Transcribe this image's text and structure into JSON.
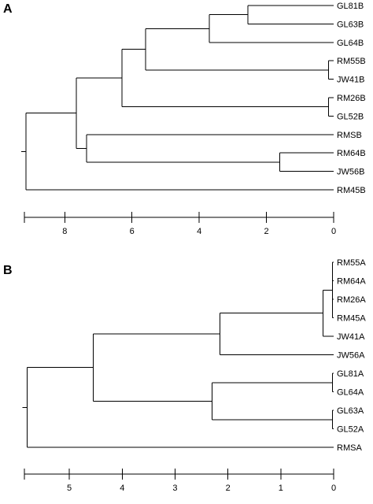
{
  "panels": [
    {
      "label": "A",
      "leaves": [
        "GL81B",
        "GL63B",
        "GL64B",
        "RM55B",
        "JW41B",
        "RM26B",
        "GL52B",
        "RMSB",
        "RM64B",
        "JW56B",
        "RM45B"
      ],
      "axis": {
        "ticks": [
          8,
          6,
          4,
          2,
          0
        ],
        "range": [
          9.2,
          0
        ]
      },
      "tree": {
        "h": 9.15,
        "c": [
          {
            "h": 7.65,
            "c": [
              {
                "h": 6.3,
                "c": [
                  {
                    "h": 5.6,
                    "c": [
                      {
                        "h": 3.7,
                        "c": [
                          {
                            "h": 2.55,
                            "c": [
                              "GL81B",
                              "GL63B"
                            ]
                          },
                          "GL64B"
                        ]
                      },
                      {
                        "h": 0.15,
                        "c": [
                          "RM55B",
                          "JW41B"
                        ]
                      }
                    ]
                  },
                  {
                    "h": 0.15,
                    "c": [
                      "RM26B",
                      "GL52B"
                    ]
                  }
                ]
              },
              {
                "h": 7.35,
                "c": [
                  "RMSB",
                  {
                    "h": 1.6,
                    "c": [
                      "RM64B",
                      "JW56B"
                    ]
                  }
                ]
              }
            ]
          },
          "RM45B"
        ]
      }
    },
    {
      "label": "B",
      "leaves": [
        "RM55A",
        "RM64A",
        "RM26A",
        "RM45A",
        "JW41A",
        "JW56A",
        "GL81A",
        "GL64A",
        "GL63A",
        "GL52A",
        "RMSA"
      ],
      "axis": {
        "ticks": [
          5,
          4,
          3,
          2,
          1,
          0
        ],
        "range": [
          5.85,
          0
        ]
      },
      "tree": {
        "h": 5.8,
        "c": [
          {
            "h": 4.55,
            "c": [
              {
                "h": 2.15,
                "c": [
                  {
                    "h": 0.2,
                    "c": [
                      {
                        "h": 0.02,
                        "c": [
                          "RM55A",
                          "RM64A",
                          "RM26A",
                          "RM45A"
                        ]
                      },
                      "JW41A"
                    ]
                  },
                  "JW56A"
                ]
              },
              {
                "h": 2.3,
                "c": [
                  {
                    "h": 0.02,
                    "c": [
                      "GL81A",
                      "GL64A"
                    ]
                  },
                  {
                    "h": 0.02,
                    "c": [
                      "GL63A",
                      "GL52A"
                    ]
                  }
                ]
              }
            ]
          },
          "RMSA"
        ]
      }
    }
  ]
}
